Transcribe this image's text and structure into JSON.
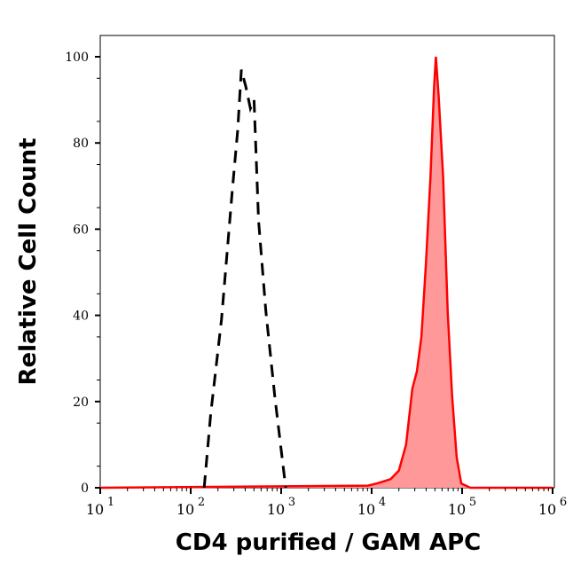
{
  "chart_data": {
    "type": "area",
    "xlabel": "CD4 purified / GAM APC",
    "ylabel": "Relative Cell Count",
    "x_scale": "log",
    "xlim": [
      10,
      1000000
    ],
    "ylim": [
      0,
      105
    ],
    "x_ticks": [
      {
        "base": "10",
        "exp": "1",
        "value": 10
      },
      {
        "base": "10",
        "exp": "2",
        "value": 100
      },
      {
        "base": "10",
        "exp": "3",
        "value": 1000
      },
      {
        "base": "10",
        "exp": "4",
        "value": 10000
      },
      {
        "base": "10",
        "exp": "5",
        "value": 100000
      },
      {
        "base": "10",
        "exp": "6",
        "value": 1000000
      }
    ],
    "y_ticks": [
      "0",
      "20",
      "40",
      "60",
      "80",
      "100"
    ],
    "grid": false,
    "series": [
      {
        "style": "dashed-line",
        "color": "#000000",
        "x": [
          141,
          166,
          219,
          288,
          331,
          363,
          407,
          457,
          501,
          562,
          676,
          851,
          1122
        ],
        "y": [
          0,
          17,
          39,
          69,
          83,
          97,
          93,
          88,
          90,
          62,
          41,
          21,
          0
        ]
      },
      {
        "style": "filled",
        "color": "#ff0000",
        "fill": "#ff9999",
        "x": [
          10,
          9120,
          11500,
          16200,
          20000,
          24000,
          28200,
          31600,
          35500,
          39800,
          44700,
          49000,
          51300,
          55000,
          61700,
          69200,
          77600,
          87100,
          97700,
          123000,
          1000000
        ],
        "y": [
          0,
          0.5,
          1,
          2,
          4,
          10,
          23,
          27,
          35,
          52,
          72,
          93,
          100,
          91,
          72,
          41,
          21,
          7,
          1,
          0,
          0
        ]
      }
    ]
  }
}
